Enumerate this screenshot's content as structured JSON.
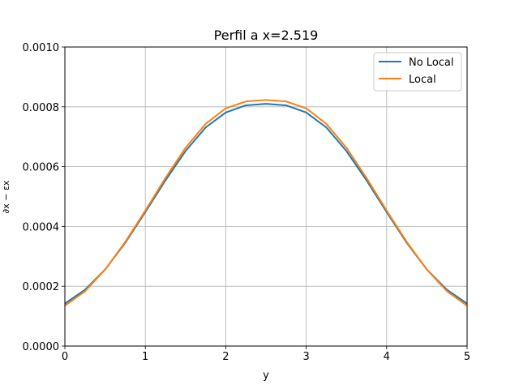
{
  "chart_data": {
    "type": "line",
    "title": "Perfil a x=2.519",
    "xlabel": "y",
    "ylabel": "∂x − εx",
    "xlim": [
      0,
      5
    ],
    "ylim": [
      0,
      0.001
    ],
    "x_ticks": [
      "0",
      "1",
      "2",
      "3",
      "4",
      "5"
    ],
    "y_ticks": [
      "0.0000",
      "0.0002",
      "0.0004",
      "0.0006",
      "0.0008",
      "0.0010"
    ],
    "grid": true,
    "legend_position": "top-right",
    "x": [
      0,
      0.25,
      0.5,
      0.75,
      1.0,
      1.25,
      1.5,
      1.75,
      2.0,
      2.25,
      2.5,
      2.75,
      3.0,
      3.25,
      3.5,
      3.75,
      4.0,
      4.25,
      4.5,
      4.75,
      5.0
    ],
    "series": [
      {
        "name": "No Local",
        "color": "#1f77b4",
        "values": [
          0.000142,
          0.000188,
          0.000256,
          0.000345,
          0.000448,
          0.000554,
          0.000652,
          0.000731,
          0.000781,
          0.000805,
          0.00081,
          0.000805,
          0.000781,
          0.000731,
          0.000652,
          0.000554,
          0.000448,
          0.000345,
          0.000256,
          0.000188,
          0.000142
        ]
      },
      {
        "name": "Local",
        "color": "#ff7f0e",
        "values": [
          0.000135,
          0.000183,
          0.000256,
          0.000348,
          0.000453,
          0.000562,
          0.000663,
          0.000743,
          0.000795,
          0.000818,
          0.000823,
          0.000818,
          0.000795,
          0.000743,
          0.000663,
          0.000562,
          0.000453,
          0.000348,
          0.000256,
          0.000183,
          0.000135
        ]
      }
    ]
  }
}
